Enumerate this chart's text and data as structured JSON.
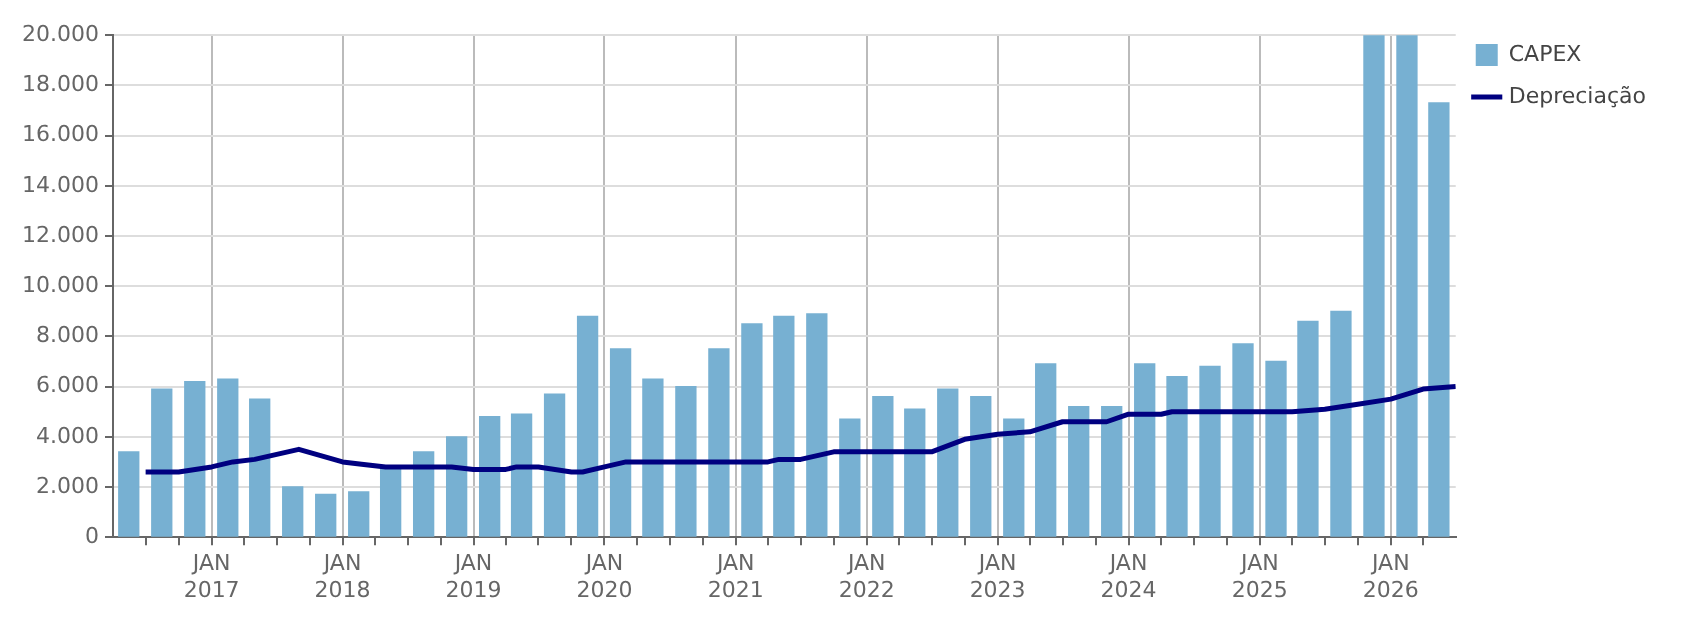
{
  "chart_data": {
    "type": "bar",
    "x": [
      "2016-05-15",
      "2016-08-15",
      "2016-11-15",
      "2017-02-15",
      "2017-05-15",
      "2017-08-15",
      "2017-11-15",
      "2018-02-15",
      "2018-05-15",
      "2018-08-15",
      "2018-11-15",
      "2019-02-15",
      "2019-05-15",
      "2019-08-15",
      "2019-11-15",
      "2020-02-15",
      "2020-05-15",
      "2020-08-15",
      "2020-11-15",
      "2021-02-15",
      "2021-05-15",
      "2021-08-15",
      "2021-11-15",
      "2022-02-15",
      "2022-05-15",
      "2022-08-15",
      "2022-11-15",
      "2023-02-15",
      "2023-05-15",
      "2023-08-15",
      "2023-11-15",
      "2024-02-15",
      "2024-05-15",
      "2024-08-15",
      "2024-11-15",
      "2025-02-15",
      "2025-05-15",
      "2025-08-15",
      "2025-11-15",
      "2026-02-15",
      "2026-05-15"
    ],
    "series": [
      {
        "name": "CAPEX",
        "color": "#77b0d2",
        "values": [
          3400,
          5900,
          6200,
          6300,
          5500,
          2000,
          1700,
          1800,
          2800,
          3400,
          4000,
          4800,
          4900,
          5700,
          8800,
          7500,
          6300,
          6000,
          7500,
          8500,
          8800,
          8900,
          4700,
          5600,
          5100,
          5900,
          5600,
          4700,
          6900,
          5200,
          5200,
          6900,
          6400,
          6800,
          7700,
          7000,
          8600,
          9000,
          20000,
          20000,
          17300
        ]
      },
      {
        "name": "Depreciação",
        "type": "line",
        "color": "#000080",
        "marker": "none",
        "line_style": "solid",
        "x": [
          "2016-07",
          "2016-10",
          "2017-01",
          "2017-03",
          "2017-05",
          "2017-09",
          "2018-01",
          "2018-03",
          "2018-05",
          "2018-11",
          "2019-01",
          "2019-04",
          "2019-05",
          "2019-07",
          "2019-10",
          "2019-11",
          "2020-01",
          "2020-03",
          "2021-04",
          "2021-05",
          "2021-07",
          "2021-10",
          "2022-07",
          "2022-10",
          "2023-01",
          "2023-04",
          "2023-07",
          "2023-11",
          "2024-01",
          "2024-04",
          "2024-05",
          "2025-04",
          "2025-07",
          "2025-10",
          "2026-01",
          "2026-04",
          "2026-07"
        ],
        "values": [
          2600,
          2600,
          2800,
          3000,
          3100,
          3500,
          3000,
          2900,
          2800,
          2800,
          2700,
          2700,
          2800,
          2800,
          2600,
          2600,
          2800,
          3000,
          3000,
          3100,
          3100,
          3400,
          3400,
          3900,
          4100,
          4200,
          4600,
          4600,
          4900,
          4900,
          5000,
          5000,
          5100,
          5300,
          5500,
          5900,
          6000
        ]
      }
    ],
    "xlim": [
      "2016-04-01",
      "2026-07-01"
    ],
    "xticks": [
      {
        "value": "2016-07-01",
        "label": null
      },
      {
        "value": "2016-10-01",
        "label": null
      },
      {
        "value": "2017-01-01",
        "label": "JAN 2017"
      },
      {
        "value": "2017-04-01",
        "label": null
      },
      {
        "value": "2017-07-01",
        "label": null
      },
      {
        "value": "2017-10-01",
        "label": null
      },
      {
        "value": "2018-01-01",
        "label": "JAN 2018"
      },
      {
        "value": "2018-04-01",
        "label": null
      },
      {
        "value": "2018-07-01",
        "label": null
      },
      {
        "value": "2018-10-01",
        "label": null
      },
      {
        "value": "2019-01-01",
        "label": "JAN 2019"
      },
      {
        "value": "2019-04-01",
        "label": null
      },
      {
        "value": "2019-07-01",
        "label": null
      },
      {
        "value": "2019-10-01",
        "label": null
      },
      {
        "value": "2020-01-01",
        "label": "JAN 2020"
      },
      {
        "value": "2020-04-01",
        "label": null
      },
      {
        "value": "2020-07-01",
        "label": null
      },
      {
        "value": "2020-10-01",
        "label": null
      },
      {
        "value": "2021-01-01",
        "label": "JAN 2021"
      },
      {
        "value": "2021-04-01",
        "label": null
      },
      {
        "value": "2021-07-01",
        "label": null
      },
      {
        "value": "2021-10-01",
        "label": null
      },
      {
        "value": "2022-01-01",
        "label": "JAN 2022"
      },
      {
        "value": "2022-04-01",
        "label": null
      },
      {
        "value": "2022-07-01",
        "label": null
      },
      {
        "value": "2022-10-01",
        "label": null
      },
      {
        "value": "2023-01-01",
        "label": "JAN 2023"
      },
      {
        "value": "2023-04-01",
        "label": null
      },
      {
        "value": "2023-07-01",
        "label": null
      },
      {
        "value": "2023-10-01",
        "label": null
      },
      {
        "value": "2024-01-01",
        "label": "JAN 2024"
      },
      {
        "value": "2024-04-01",
        "label": null
      },
      {
        "value": "2024-07-01",
        "label": null
      },
      {
        "value": "2024-10-01",
        "label": null
      },
      {
        "value": "2025-01-01",
        "label": "JAN 2025"
      },
      {
        "value": "2025-04-01",
        "label": null
      },
      {
        "value": "2025-07-01",
        "label": null
      },
      {
        "value": "2025-10-01",
        "label": null
      },
      {
        "value": "2026-01-01",
        "label": "JAN 2026"
      },
      {
        "value": "2026-04-01",
        "label": null
      }
    ],
    "ylim": [
      0,
      20000
    ],
    "yticks": [
      0,
      {
        "value": 2000,
        "label": "2.000"
      },
      {
        "value": 4000,
        "label": "4.000"
      },
      {
        "value": 6000,
        "label": "6.000"
      },
      {
        "value": 8000,
        "label": "8.000"
      },
      {
        "value": 10000,
        "label": "10.000"
      },
      {
        "value": 12000,
        "label": "12.000"
      },
      {
        "value": 14000,
        "label": "14.000"
      },
      {
        "value": 16000,
        "label": "16.000"
      },
      {
        "value": 18000,
        "label": "18.000"
      },
      {
        "value": 20000,
        "label": "20.000"
      }
    ],
    "grid": true,
    "legend": "top right"
  }
}
